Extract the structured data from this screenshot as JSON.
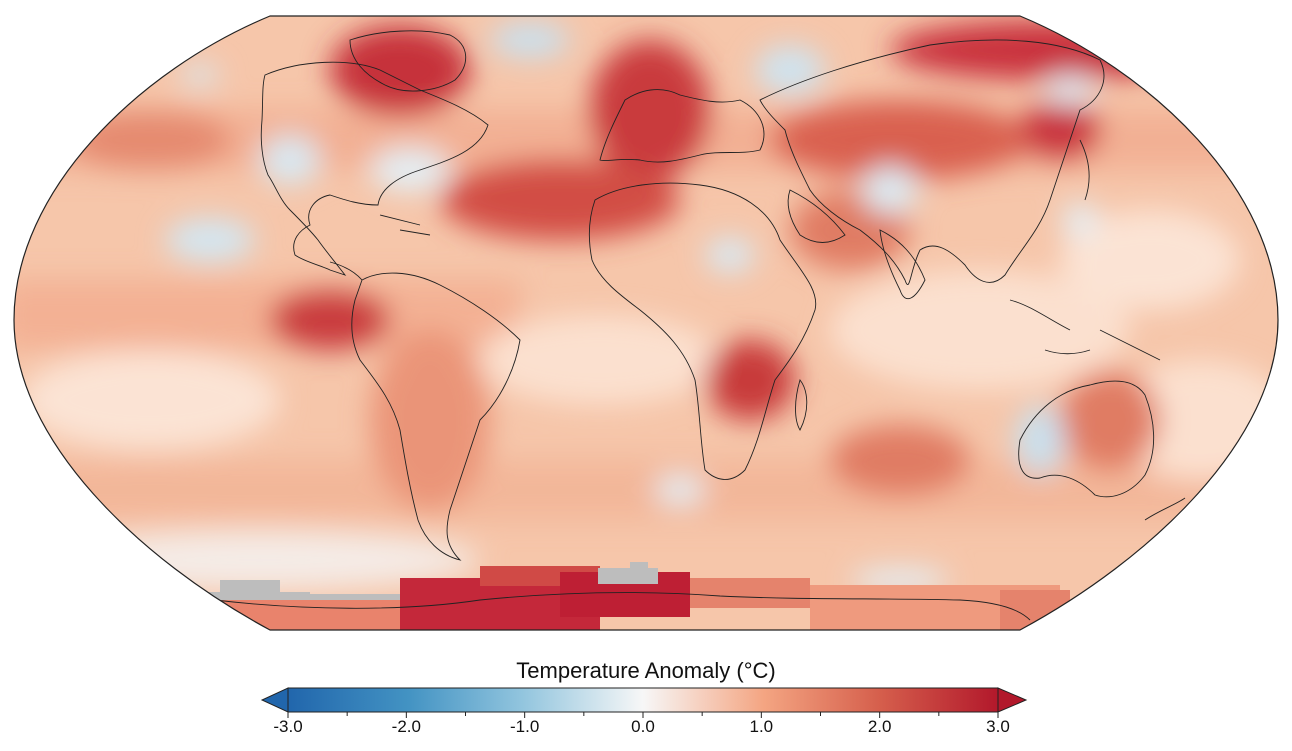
{
  "map": {
    "projection": "Robinson-like world map, Pacific-centered left, Greenwich near center",
    "colors": {
      "deep_red": "#b2182b",
      "red": "#d6604d",
      "salmon": "#f4a582",
      "pale": "#fddbc7",
      "white": "#f7f7f7",
      "pale_blue": "#d1e5f0",
      "blue": "#92c5de",
      "missing": "#bdbdbd",
      "coast": "#222222"
    }
  },
  "colorbar": {
    "title": "Temperature Anomaly (°C)",
    "min": -3.0,
    "max": 3.0,
    "tick_labels": [
      "-3.0",
      "-2.0",
      "-1.0",
      "0.0",
      "1.0",
      "2.0",
      "3.0"
    ],
    "extend": "both"
  }
}
